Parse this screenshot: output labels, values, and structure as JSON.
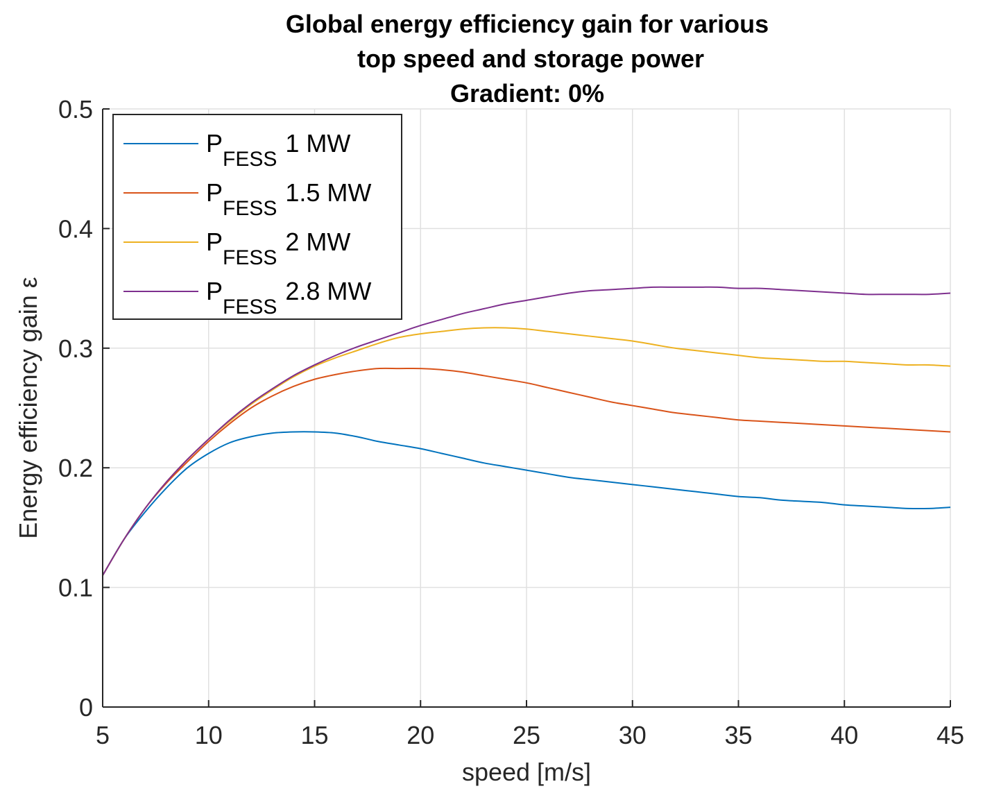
{
  "chart_data": {
    "type": "line",
    "title": [
      "Global energy efficiency gain for various",
      "top speed and storage power",
      "Gradient: 0%"
    ],
    "xlabel": "speed [m/s]",
    "ylabel": "Energy efficiency gain ε",
    "xlim": [
      5,
      45
    ],
    "ylim": [
      0,
      0.5
    ],
    "xticks": [
      5,
      10,
      15,
      20,
      25,
      30,
      35,
      40,
      45
    ],
    "yticks": [
      0,
      0.1,
      0.2,
      0.3,
      0.4,
      0.5
    ],
    "ytick_labels": [
      "0",
      "0.1",
      "0.2",
      "0.3",
      "0.4",
      "0.5"
    ],
    "grid": true,
    "legend_position": "top-left",
    "x": [
      5,
      6,
      7,
      8,
      9,
      10,
      11,
      12,
      13,
      14,
      15,
      16,
      17,
      18,
      19,
      20,
      21,
      22,
      23,
      24,
      25,
      26,
      27,
      28,
      29,
      30,
      31,
      32,
      33,
      34,
      35,
      36,
      37,
      38,
      39,
      40,
      41,
      42,
      43,
      44,
      45
    ],
    "series": [
      {
        "name": "P_FESS 1 MW",
        "legend_main": "P",
        "legend_sub": "FESS",
        "legend_value": "1 MW",
        "color": "#0072BD",
        "values": [
          0.11,
          0.14,
          0.163,
          0.183,
          0.2,
          0.212,
          0.221,
          0.226,
          0.229,
          0.23,
          0.23,
          0.229,
          0.226,
          0.222,
          0.219,
          0.216,
          0.212,
          0.208,
          0.204,
          0.201,
          0.198,
          0.195,
          0.192,
          0.19,
          0.188,
          0.186,
          0.184,
          0.182,
          0.18,
          0.178,
          0.176,
          0.175,
          0.173,
          0.172,
          0.171,
          0.169,
          0.168,
          0.167,
          0.166,
          0.166,
          0.167
        ]
      },
      {
        "name": "P_FESS 1.5 MW",
        "legend_main": "P",
        "legend_sub": "FESS",
        "legend_value": "1.5 MW",
        "color": "#D95319",
        "values": [
          0.11,
          0.14,
          0.166,
          0.187,
          0.205,
          0.222,
          0.237,
          0.25,
          0.26,
          0.268,
          0.274,
          0.278,
          0.281,
          0.283,
          0.283,
          0.283,
          0.282,
          0.28,
          0.277,
          0.274,
          0.271,
          0.267,
          0.263,
          0.259,
          0.255,
          0.252,
          0.249,
          0.246,
          0.244,
          0.242,
          0.24,
          0.239,
          0.238,
          0.237,
          0.236,
          0.235,
          0.234,
          0.233,
          0.232,
          0.231,
          0.23
        ]
      },
      {
        "name": "P_FESS 2 MW",
        "legend_main": "P",
        "legend_sub": "FESS",
        "legend_value": "2 MW",
        "color": "#EDB120",
        "values": [
          0.11,
          0.14,
          0.166,
          0.188,
          0.207,
          0.224,
          0.239,
          0.253,
          0.265,
          0.276,
          0.285,
          0.292,
          0.298,
          0.304,
          0.309,
          0.312,
          0.314,
          0.316,
          0.317,
          0.317,
          0.316,
          0.314,
          0.312,
          0.31,
          0.308,
          0.306,
          0.303,
          0.3,
          0.298,
          0.296,
          0.294,
          0.292,
          0.291,
          0.29,
          0.289,
          0.289,
          0.288,
          0.287,
          0.286,
          0.286,
          0.285
        ]
      },
      {
        "name": "P_FESS 2.8 MW",
        "legend_main": "P",
        "legend_sub": "FESS",
        "legend_value": "2.8 MW",
        "color": "#7E2F8E",
        "values": [
          0.11,
          0.14,
          0.166,
          0.188,
          0.207,
          0.224,
          0.24,
          0.254,
          0.266,
          0.277,
          0.286,
          0.294,
          0.301,
          0.307,
          0.313,
          0.319,
          0.324,
          0.329,
          0.333,
          0.337,
          0.34,
          0.343,
          0.346,
          0.348,
          0.349,
          0.35,
          0.351,
          0.351,
          0.351,
          0.351,
          0.35,
          0.35,
          0.349,
          0.348,
          0.347,
          0.346,
          0.345,
          0.345,
          0.345,
          0.345,
          0.346
        ]
      }
    ]
  }
}
